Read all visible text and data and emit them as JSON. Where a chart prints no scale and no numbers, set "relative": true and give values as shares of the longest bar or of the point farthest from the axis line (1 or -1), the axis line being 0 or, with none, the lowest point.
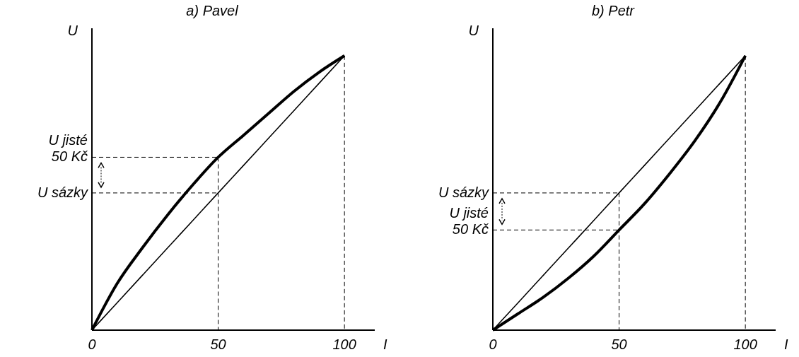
{
  "chart_data": [
    {
      "type": "line",
      "title": "a) Pavel",
      "xlabel": "I",
      "ylabel": "U",
      "relative": true,
      "x": [
        0,
        10,
        20,
        30,
        40,
        50,
        60,
        70,
        80,
        90,
        100
      ],
      "xlim": [
        0,
        112
      ],
      "xticks": [
        0,
        50,
        100
      ],
      "tick_labels": "x",
      "grid": false,
      "series": [
        {
          "color": "#000000",
          "values": [
            0,
            0.17,
            0.3,
            0.42,
            0.53,
            0.63,
            0.71,
            0.79,
            0.87,
            0.94,
            1
          ]
        },
        {
          "color": "#000000",
          "values": [
            0,
            0.1,
            0.2,
            0.3,
            0.4,
            0.5,
            0.6,
            0.7,
            0.8,
            0.9,
            1
          ]
        }
      ],
      "ref_lines": [
        {
          "axis": "y",
          "value": 0.63,
          "label": "U jisté 50 Kč",
          "line_style": "dashed"
        },
        {
          "axis": "y",
          "value": 0.5,
          "label": "U sázky",
          "line_style": "dashed"
        },
        {
          "axis": "x",
          "value": 50,
          "line_style": "dashed"
        },
        {
          "axis": "x",
          "value": 100,
          "line_style": "dashed"
        }
      ]
    },
    {
      "type": "line",
      "title": "b) Petr",
      "xlabel": "I",
      "ylabel": "U",
      "relative": true,
      "x": [
        0,
        10,
        20,
        30,
        40,
        50,
        60,
        70,
        80,
        90,
        100
      ],
      "xlim": [
        0,
        112
      ],
      "xticks": [
        0,
        50,
        100
      ],
      "tick_labels": "x",
      "grid": false,
      "series": [
        {
          "color": "#000000",
          "values": [
            0,
            0.06,
            0.12,
            0.19,
            0.27,
            0.365,
            0.46,
            0.57,
            0.69,
            0.83,
            1
          ]
        },
        {
          "color": "#000000",
          "values": [
            0,
            0.1,
            0.2,
            0.3,
            0.4,
            0.5,
            0.6,
            0.7,
            0.8,
            0.9,
            1
          ]
        }
      ],
      "ref_lines": [
        {
          "axis": "y",
          "value": 0.5,
          "label": "U sázky",
          "line_style": "dashed"
        },
        {
          "axis": "y",
          "value": 0.365,
          "label": "U jisté 50 Kč",
          "line_style": "dashed"
        },
        {
          "axis": "x",
          "value": 50,
          "line_style": "dashed"
        },
        {
          "axis": "x",
          "value": 100,
          "line_style": "dashed"
        }
      ]
    }
  ]
}
